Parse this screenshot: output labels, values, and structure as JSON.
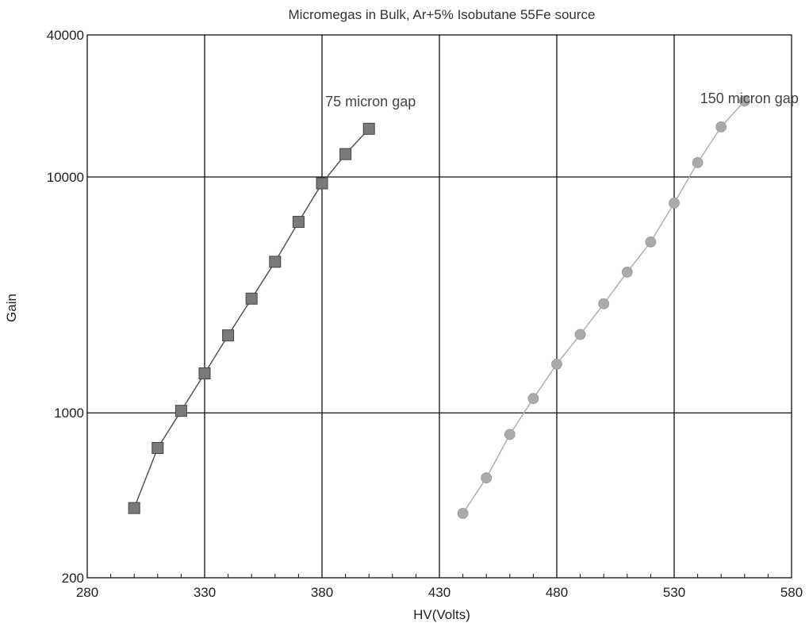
{
  "chart_data": {
    "type": "line",
    "title": "Micromegas in Bulk, Ar+5% Isobutane 55Fe source",
    "xlabel": "HV(Volts)",
    "ylabel": "Gain",
    "xlim": [
      280,
      580
    ],
    "ylim": [
      200,
      40000
    ],
    "yscale": "log",
    "grid": true,
    "x_ticks": [
      280,
      330,
      380,
      430,
      480,
      530,
      580
    ],
    "y_ticks": [
      200,
      1000,
      10000,
      40000
    ],
    "x_tick_labels": [
      "280",
      "330",
      "380",
      "430",
      "480",
      "530",
      "580"
    ],
    "y_tick_labels": [
      "200",
      "1000",
      "10000",
      "40000"
    ],
    "series": [
      {
        "marker": "square",
        "color": "#7a7a7a",
        "line_color": "#555555",
        "annotation": "75 micron gap",
        "x": [
          300,
          310,
          320,
          330,
          340,
          350,
          360,
          370,
          380,
          390,
          400
        ],
        "y": [
          395,
          710,
          1020,
          1470,
          2130,
          3050,
          4370,
          6450,
          9400,
          12500,
          16000
        ]
      },
      {
        "marker": "circle",
        "color": "#aaaaaa",
        "line_color": "#b0b0b0",
        "annotation": "150 micron gap",
        "x": [
          440,
          450,
          460,
          470,
          480,
          490,
          500,
          510,
          520,
          530,
          540,
          550,
          560
        ],
        "y": [
          375,
          530,
          810,
          1150,
          1610,
          2150,
          2900,
          3950,
          5300,
          7750,
          11500,
          16300,
          21000
        ]
      }
    ]
  }
}
